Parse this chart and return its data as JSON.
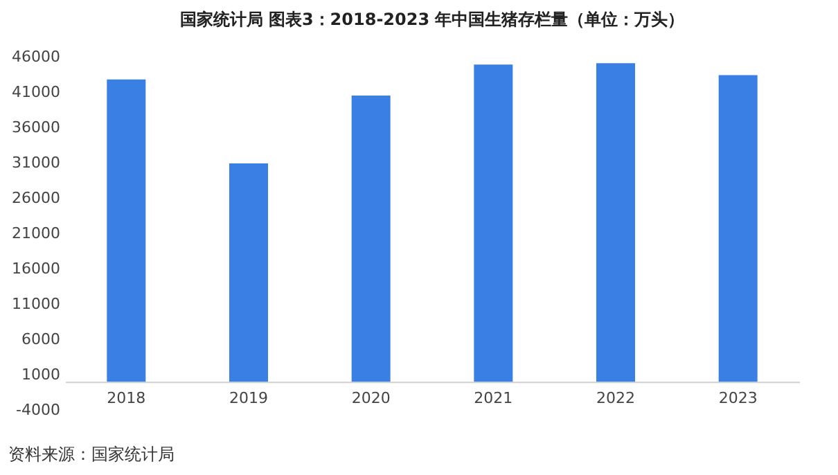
{
  "chart_data": {
    "type": "bar",
    "title": "国家统计局 图表3：2018-2023 年中国生猪存栏量（单位：万头）",
    "categories": [
      "2018",
      "2019",
      "2020",
      "2021",
      "2022",
      "2023"
    ],
    "values": [
      42800,
      30900,
      40500,
      44900,
      45100,
      43400
    ],
    "color": "#3a80e4",
    "ylim": [
      -4000,
      46000
    ],
    "yticks": [
      -4000,
      1000,
      6000,
      11000,
      16000,
      21000,
      26000,
      31000,
      36000,
      41000,
      46000
    ],
    "grid": false,
    "annotations": [
      "资料来源：国家统计局"
    ]
  }
}
